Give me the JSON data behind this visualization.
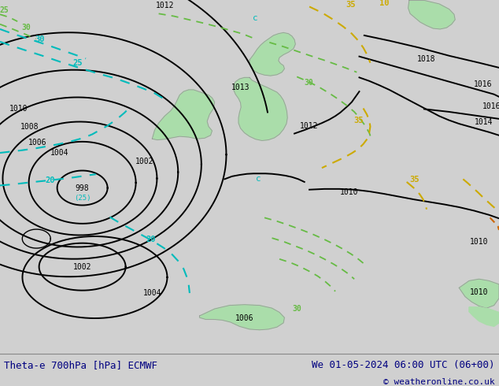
{
  "title_left": "Theta-e 700hPa [hPa] ECMWF",
  "title_right": "We 01-05-2024 06:00 UTC (06+00)",
  "copyright": "© weatheronline.co.uk",
  "bg_color": "#d0d0d0",
  "map_bg_color": "#d8d8d8",
  "land_color": "#aaddaa",
  "land_border_color": "#999999",
  "isobar_color": "#000000",
  "theta_e_cyan_color": "#00bbbb",
  "theta_e_yellow_color": "#ccaa00",
  "theta_e_green_color": "#66bb44",
  "title_color": "#000080",
  "font_size_title": 9,
  "figsize": [
    6.34,
    4.9
  ],
  "dpi": 100
}
